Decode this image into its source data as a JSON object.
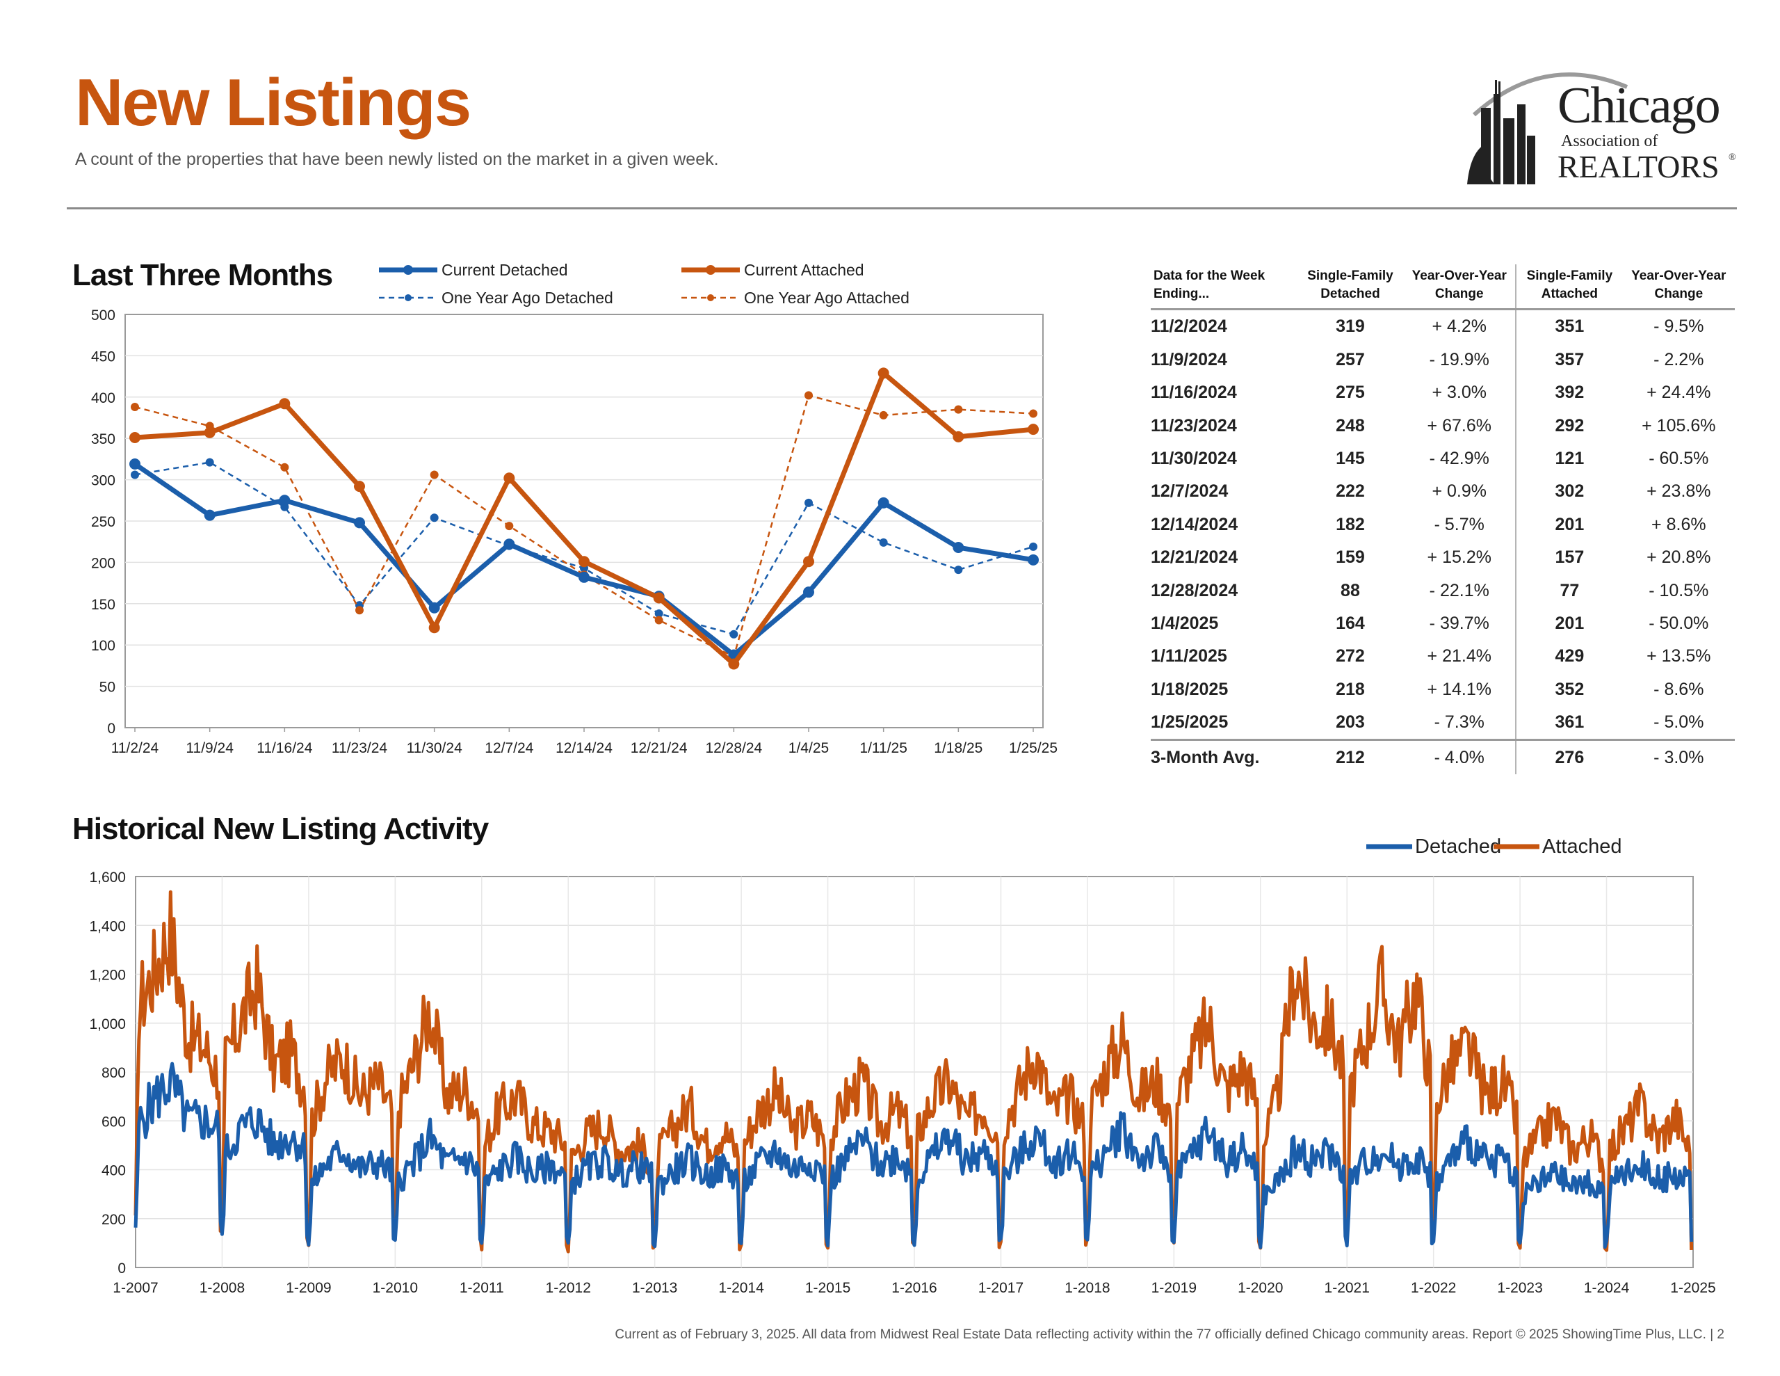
{
  "header": {
    "title": "New Listings",
    "subtitle": "A count of the properties that have been newly listed on the market in a given week.",
    "logo": {
      "line1": "Chicago",
      "line2": "Association of",
      "line3": "REALTORS",
      "mark": "®"
    }
  },
  "colors": {
    "detached": "#1b5eab",
    "attached": "#c7550f",
    "accent": "#c7550f"
  },
  "sections": {
    "recent": "Last Three Months",
    "historical": "Historical New Listing Activity"
  },
  "table": {
    "headers": [
      "Data for the Week Ending...",
      "Single-Family Detached",
      "Year-Over-Year Change",
      "Single-Family Attached",
      "Year-Over-Year Change"
    ],
    "rows": [
      [
        "11/2/2024",
        "319",
        "+ 4.2%",
        "351",
        "- 9.5%"
      ],
      [
        "11/9/2024",
        "257",
        "- 19.9%",
        "357",
        "- 2.2%"
      ],
      [
        "11/16/2024",
        "275",
        "+ 3.0%",
        "392",
        "+ 24.4%"
      ],
      [
        "11/23/2024",
        "248",
        "+ 67.6%",
        "292",
        "+ 105.6%"
      ],
      [
        "11/30/2024",
        "145",
        "- 42.9%",
        "121",
        "- 60.5%"
      ],
      [
        "12/7/2024",
        "222",
        "+ 0.9%",
        "302",
        "+ 23.8%"
      ],
      [
        "12/14/2024",
        "182",
        "- 5.7%",
        "201",
        "+ 8.6%"
      ],
      [
        "12/21/2024",
        "159",
        "+ 15.2%",
        "157",
        "+ 20.8%"
      ],
      [
        "12/28/2024",
        "88",
        "- 22.1%",
        "77",
        "- 10.5%"
      ],
      [
        "1/4/2025",
        "164",
        "- 39.7%",
        "201",
        "- 50.0%"
      ],
      [
        "1/11/2025",
        "272",
        "+ 21.4%",
        "429",
        "+ 13.5%"
      ],
      [
        "1/18/2025",
        "218",
        "+ 14.1%",
        "352",
        "- 8.6%"
      ],
      [
        "1/25/2025",
        "203",
        "- 7.3%",
        "361",
        "- 5.0%"
      ]
    ],
    "average": [
      "3-Month Avg.",
      "212",
      "- 4.0%",
      "276",
      "- 3.0%"
    ]
  },
  "chart_data": [
    {
      "type": "line",
      "categories": [
        "11/2/24",
        "11/9/24",
        "11/16/24",
        "11/23/24",
        "11/30/24",
        "12/7/24",
        "12/14/24",
        "12/21/24",
        "12/28/24",
        "1/4/25",
        "1/11/25",
        "1/18/25",
        "1/25/25"
      ],
      "ylim": [
        0,
        500
      ],
      "yticks": [
        0,
        50,
        100,
        150,
        200,
        250,
        300,
        350,
        400,
        450,
        500
      ],
      "grid": true,
      "legend_position": "top",
      "series": [
        {
          "name": "Current Detached",
          "style": "solid",
          "color": "#1b5eab",
          "values": [
            319,
            257,
            275,
            248,
            145,
            222,
            182,
            159,
            88,
            164,
            272,
            218,
            203
          ]
        },
        {
          "name": "One Year Ago Detached",
          "style": "dashed",
          "color": "#1b5eab",
          "values": [
            306,
            321,
            267,
            148,
            254,
            220,
            193,
            138,
            113,
            272,
            224,
            191,
            219
          ]
        },
        {
          "name": "Current Attached",
          "style": "solid",
          "color": "#c7550f",
          "values": [
            351,
            357,
            392,
            292,
            121,
            302,
            201,
            157,
            77,
            201,
            429,
            352,
            361
          ]
        },
        {
          "name": "One Year Ago Attached",
          "style": "dashed",
          "color": "#c7550f",
          "values": [
            388,
            365,
            315,
            142,
            306,
            244,
            185,
            130,
            86,
            402,
            378,
            385,
            380
          ]
        }
      ]
    },
    {
      "type": "line",
      "x_labels": [
        "1-2007",
        "1-2008",
        "1-2009",
        "1-2010",
        "1-2011",
        "1-2012",
        "1-2013",
        "1-2014",
        "1-2015",
        "1-2016",
        "1-2017",
        "1-2018",
        "1-2019",
        "1-2020",
        "1-2021",
        "1-2022",
        "1-2023",
        "1-2024",
        "1-2025"
      ],
      "x_range": [
        2007,
        2025
      ],
      "ylim": [
        0,
        1600
      ],
      "yticks": [
        "0",
        "200",
        "400",
        "600",
        "800",
        "1,000",
        "1,200",
        "1,400",
        "1,600"
      ],
      "grid": true,
      "legend_position": "top-right",
      "sampling": "weekly",
      "series": [
        {
          "name": "Detached",
          "color": "#1b5eab",
          "yearly_profile": [
            [
              2007,
              560,
              680,
              760,
              600,
              600,
              560
            ],
            [
              2008,
              440,
              560,
              610,
              500,
              540,
              470
            ],
            [
              2009,
              320,
              420,
              480,
              400,
              430,
              380
            ],
            [
              2010,
              340,
              420,
              530,
              420,
              450,
              380
            ],
            [
              2011,
              320,
              400,
              450,
              380,
              420,
              360
            ],
            [
              2012,
              330,
              400,
              440,
              380,
              420,
              360
            ],
            [
              2013,
              320,
              390,
              440,
              370,
              410,
              350
            ],
            [
              2014,
              330,
              420,
              480,
              400,
              440,
              370
            ],
            [
              2015,
              340,
              440,
              520,
              420,
              460,
              380
            ],
            [
              2016,
              340,
              450,
              540,
              430,
              470,
              390
            ],
            [
              2017,
              350,
              450,
              540,
              430,
              470,
              390
            ],
            [
              2018,
              350,
              460,
              580,
              440,
              480,
              390
            ],
            [
              2019,
              350,
              460,
              560,
              440,
              480,
              390
            ],
            [
              2020,
              280,
              350,
              480,
              440,
              470,
              380
            ],
            [
              2021,
              340,
              430,
              480,
              420,
              450,
              370
            ],
            [
              2022,
              330,
              440,
              520,
              430,
              450,
              360
            ],
            [
              2023,
              300,
              340,
              380,
              330,
              350,
              300
            ],
            [
              2024,
              320,
              380,
              420,
              360,
              380,
              330
            ]
          ]
        },
        {
          "name": "Attached",
          "color": "#c7550f",
          "yearly_profile": [
            [
              2007,
              1050,
              1200,
              1380,
              950,
              900,
              760
            ],
            [
              2008,
              800,
              1000,
              1160,
              820,
              880,
              700
            ],
            [
              2009,
              560,
              780,
              860,
              700,
              760,
              600
            ],
            [
              2010,
              620,
              820,
              1060,
              700,
              740,
              620
            ],
            [
              2011,
              480,
              640,
              700,
              580,
              560,
              500
            ],
            [
              2012,
              420,
              540,
              590,
              480,
              500,
              420
            ],
            [
              2013,
              440,
              560,
              660,
              500,
              560,
              440
            ],
            [
              2014,
              480,
              640,
              720,
              560,
              620,
              500
            ],
            [
              2015,
              520,
              680,
              760,
              580,
              640,
              520
            ],
            [
              2016,
              520,
              680,
              760,
              600,
              660,
              520
            ],
            [
              2017,
              560,
              720,
              880,
              640,
              700,
              560
            ],
            [
              2018,
              620,
              800,
              940,
              700,
              760,
              600
            ],
            [
              2019,
              640,
              840,
              1000,
              720,
              820,
              640
            ],
            [
              2020,
              460,
              700,
              1230,
              1000,
              1000,
              760
            ],
            [
              2021,
              700,
              920,
              1150,
              900,
              1150,
              700
            ],
            [
              2022,
              660,
              820,
              900,
              700,
              760,
              560
            ],
            [
              2023,
              420,
              520,
              620,
              480,
              540,
              420
            ],
            [
              2024,
              460,
              560,
              660,
              520,
              620,
              440
            ]
          ]
        }
      ]
    }
  ],
  "footer": "Current as of February 3, 2025.  All data from Midwest Real Estate Data reflecting activity within the 77 officially defined Chicago community areas. Report © 2025 ShowingTime Plus, LLC.  |  2"
}
